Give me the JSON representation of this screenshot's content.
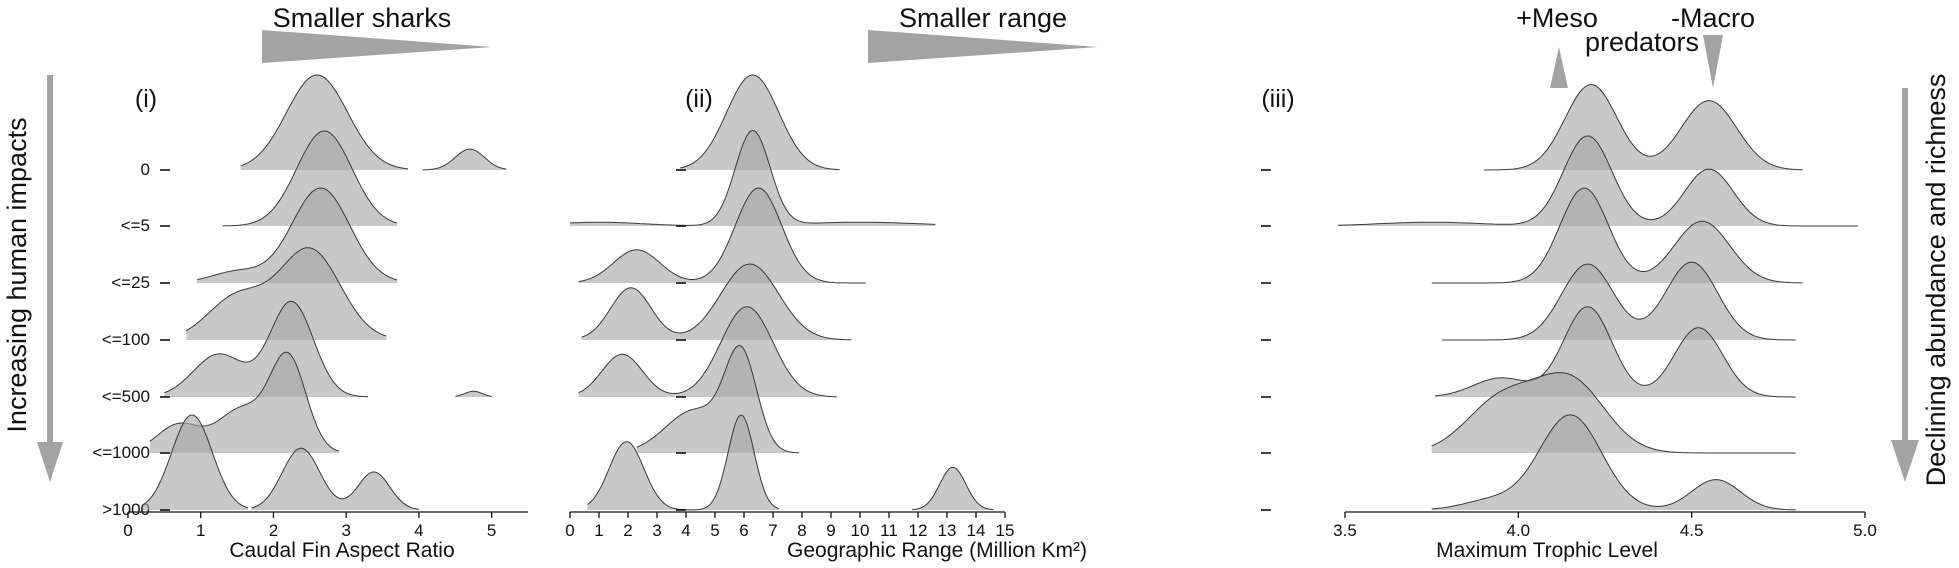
{
  "labels": {
    "y_axis_title": "Increasing human impacts",
    "right_title": "Declining abundance and richness",
    "row_labels": [
      "0",
      "<=5",
      "<=25",
      "<=100",
      "<=500",
      "<=1000",
      ">1000"
    ]
  },
  "chart_data": [
    {
      "type": "ridgeline",
      "panel": "(i)",
      "banner": "Smaller sharks",
      "xlabel": "Caudal Fin Aspect Ratio",
      "xlim": [
        0,
        5.5
      ],
      "xticks": [
        "0",
        "1",
        "2",
        "3",
        "4",
        "5"
      ],
      "ridges": [
        {
          "row": "0",
          "segments": [
            {
              "range": [
                1.55,
                3.85
              ],
              "peaks": [
                {
                  "mu": 2.6,
                  "sd": 0.42,
                  "amp": 1.0
                }
              ]
            },
            {
              "range": [
                4.05,
                5.2
              ],
              "peaks": [
                {
                  "mu": 4.7,
                  "sd": 0.2,
                  "amp": 0.22
                }
              ]
            }
          ]
        },
        {
          "row": "<=5",
          "segments": [
            {
              "range": [
                1.3,
                3.7
              ],
              "peaks": [
                {
                  "mu": 2.7,
                  "sd": 0.38,
                  "amp": 1.0
                }
              ]
            }
          ]
        },
        {
          "row": "<=25",
          "segments": [
            {
              "range": [
                0.95,
                3.7
              ],
              "peaks": [
                {
                  "mu": 2.65,
                  "sd": 0.4,
                  "amp": 1.0
                },
                {
                  "mu": 1.5,
                  "sd": 0.35,
                  "amp": 0.12
                }
              ]
            }
          ]
        },
        {
          "row": "<=100",
          "segments": [
            {
              "range": [
                0.8,
                3.55
              ],
              "peaks": [
                {
                  "mu": 2.5,
                  "sd": 0.42,
                  "amp": 0.95
                },
                {
                  "mu": 1.5,
                  "sd": 0.4,
                  "amp": 0.45
                }
              ]
            }
          ]
        },
        {
          "row": "<=500",
          "segments": [
            {
              "range": [
                0.5,
                3.3
              ],
              "peaks": [
                {
                  "mu": 2.25,
                  "sd": 0.3,
                  "amp": 1.0
                },
                {
                  "mu": 1.25,
                  "sd": 0.35,
                  "amp": 0.45
                }
              ]
            },
            {
              "range": [
                4.5,
                5.0
              ],
              "peaks": [
                {
                  "mu": 4.75,
                  "sd": 0.12,
                  "amp": 0.06
                }
              ]
            }
          ]
        },
        {
          "row": "<=1000",
          "segments": [
            {
              "range": [
                0.3,
                2.9
              ],
              "peaks": [
                {
                  "mu": 2.2,
                  "sd": 0.25,
                  "amp": 1.0
                },
                {
                  "mu": 1.55,
                  "sd": 0.32,
                  "amp": 0.45
                },
                {
                  "mu": 0.7,
                  "sd": 0.3,
                  "amp": 0.3
                }
              ]
            }
          ]
        },
        {
          "row": ">1000",
          "segments": [
            {
              "range": [
                0.2,
                1.65
              ],
              "peaks": [
                {
                  "mu": 0.88,
                  "sd": 0.28,
                  "amp": 1.0
                }
              ]
            },
            {
              "range": [
                1.7,
                4.0
              ],
              "peaks": [
                {
                  "mu": 2.38,
                  "sd": 0.26,
                  "amp": 0.65
                },
                {
                  "mu": 3.38,
                  "sd": 0.22,
                  "amp": 0.4
                }
              ]
            }
          ]
        }
      ]
    },
    {
      "type": "ridgeline",
      "panel": "(ii)",
      "banner": "Smaller range",
      "xlabel": "Geographic Range (Million Km²)",
      "xlim": [
        0,
        15
      ],
      "xticks": [
        "0",
        "1",
        "2",
        "3",
        "4",
        "5",
        "6",
        "7",
        "8",
        "9",
        "10",
        "11",
        "12",
        "13",
        "14",
        "15"
      ],
      "ridges": [
        {
          "row": "0",
          "segments": [
            {
              "range": [
                3.8,
                9.3
              ],
              "peaks": [
                {
                  "mu": 6.3,
                  "sd": 0.9,
                  "amp": 1.0
                }
              ]
            }
          ]
        },
        {
          "row": "<=5",
          "segments": [
            {
              "range": [
                0,
                12.6
              ],
              "peaks": [
                {
                  "mu": 6.3,
                  "sd": 0.6,
                  "amp": 1.0
                },
                {
                  "mu": 1.0,
                  "sd": 1.5,
                  "amp": 0.04
                },
                {
                  "mu": 10.0,
                  "sd": 2.0,
                  "amp": 0.04
                }
              ]
            }
          ]
        },
        {
          "row": "<=25",
          "segments": [
            {
              "range": [
                0.3,
                10.2
              ],
              "peaks": [
                {
                  "mu": 6.5,
                  "sd": 0.8,
                  "amp": 1.0
                },
                {
                  "mu": 2.3,
                  "sd": 0.8,
                  "amp": 0.35
                }
              ]
            }
          ]
        },
        {
          "row": "<=100",
          "segments": [
            {
              "range": [
                0.4,
                9.7
              ],
              "peaks": [
                {
                  "mu": 6.2,
                  "sd": 1.0,
                  "amp": 0.8
                },
                {
                  "mu": 2.1,
                  "sd": 0.7,
                  "amp": 0.55
                }
              ]
            }
          ]
        },
        {
          "row": "<=500",
          "segments": [
            {
              "range": [
                0.3,
                9.2
              ],
              "peaks": [
                {
                  "mu": 6.1,
                  "sd": 0.9,
                  "amp": 0.95
                },
                {
                  "mu": 1.8,
                  "sd": 0.7,
                  "amp": 0.45
                }
              ]
            }
          ]
        },
        {
          "row": "<=1000",
          "segments": [
            {
              "range": [
                2.3,
                7.9
              ],
              "peaks": [
                {
                  "mu": 5.9,
                  "sd": 0.55,
                  "amp": 1.0
                },
                {
                  "mu": 4.3,
                  "sd": 1.0,
                  "amp": 0.45
                }
              ]
            }
          ]
        },
        {
          "row": ">1000",
          "segments": [
            {
              "range": [
                0.6,
                7.2
              ],
              "peaks": [
                {
                  "mu": 1.95,
                  "sd": 0.6,
                  "amp": 0.72
                },
                {
                  "mu": 5.9,
                  "sd": 0.45,
                  "amp": 1.0
                }
              ]
            },
            {
              "range": [
                11.8,
                14.6
              ],
              "peaks": [
                {
                  "mu": 13.2,
                  "sd": 0.45,
                  "amp": 0.45
                }
              ]
            }
          ]
        }
      ]
    },
    {
      "type": "ridgeline",
      "panel": "(iii)",
      "banner_left": "+Meso",
      "banner_right": "-Macro",
      "banner_center": "predators",
      "xlabel": "Maximum Trophic Level",
      "xlim": [
        3.5,
        5.0
      ],
      "xticks": [
        "3.5",
        "4.0",
        "4.5",
        "5.0"
      ],
      "ridges": [
        {
          "row": "0",
          "segments": [
            {
              "range": [
                3.9,
                4.82
              ],
              "peaks": [
                {
                  "mu": 4.21,
                  "sd": 0.075,
                  "amp": 0.9
                },
                {
                  "mu": 4.55,
                  "sd": 0.08,
                  "amp": 0.73
                }
              ]
            }
          ]
        },
        {
          "row": "<=5",
          "segments": [
            {
              "range": [
                3.48,
                4.98
              ],
              "peaks": [
                {
                  "mu": 4.2,
                  "sd": 0.07,
                  "amp": 0.95
                },
                {
                  "mu": 4.55,
                  "sd": 0.07,
                  "amp": 0.6
                },
                {
                  "mu": 3.75,
                  "sd": 0.15,
                  "amp": 0.04
                }
              ]
            }
          ]
        },
        {
          "row": "<=25",
          "segments": [
            {
              "range": [
                3.75,
                4.82
              ],
              "peaks": [
                {
                  "mu": 4.19,
                  "sd": 0.07,
                  "amp": 1.0
                },
                {
                  "mu": 4.53,
                  "sd": 0.08,
                  "amp": 0.65
                }
              ]
            }
          ]
        },
        {
          "row": "<=100",
          "segments": [
            {
              "range": [
                3.78,
                4.8
              ],
              "peaks": [
                {
                  "mu": 4.2,
                  "sd": 0.075,
                  "amp": 0.8
                },
                {
                  "mu": 4.5,
                  "sd": 0.075,
                  "amp": 0.82
                }
              ]
            }
          ]
        },
        {
          "row": "<=500",
          "segments": [
            {
              "range": [
                3.76,
                4.8
              ],
              "peaks": [
                {
                  "mu": 4.2,
                  "sd": 0.07,
                  "amp": 0.95
                },
                {
                  "mu": 4.52,
                  "sd": 0.07,
                  "amp": 0.73
                },
                {
                  "mu": 3.95,
                  "sd": 0.08,
                  "amp": 0.2
                }
              ]
            }
          ]
        },
        {
          "row": "<=1000",
          "segments": [
            {
              "range": [
                3.75,
                4.8
              ],
              "peaks": [
                {
                  "mu": 4.15,
                  "sd": 0.1,
                  "amp": 0.75
                },
                {
                  "mu": 3.95,
                  "sd": 0.1,
                  "amp": 0.55
                }
              ]
            }
          ]
        },
        {
          "row": ">1000",
          "segments": [
            {
              "range": [
                3.75,
                4.8
              ],
              "peaks": [
                {
                  "mu": 4.15,
                  "sd": 0.09,
                  "amp": 1.0
                },
                {
                  "mu": 4.57,
                  "sd": 0.07,
                  "amp": 0.32
                },
                {
                  "mu": 3.92,
                  "sd": 0.08,
                  "amp": 0.1
                }
              ]
            }
          ]
        }
      ]
    }
  ]
}
